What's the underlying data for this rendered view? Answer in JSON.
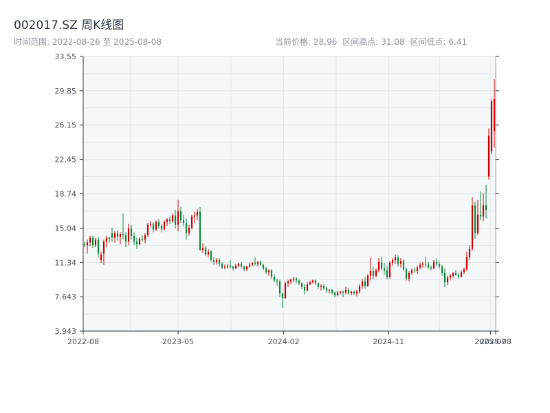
{
  "header": {
    "title": "002017.SZ 周K线图",
    "range_label": "时间范围:",
    "range_start": "2022-08-26",
    "range_sep": "至",
    "range_end": "2025-08-08",
    "price_label": "当前价格:",
    "price": "28.96",
    "high_label": "区间高点:",
    "high": "31.08",
    "low_label": "区间低点:",
    "low": "6.41"
  },
  "colors": {
    "up": "#cc0000",
    "down": "#0a8a3c",
    "plot_bg": "#f6f7f9",
    "grid": "#e2e5ea",
    "axis": "#2b3342"
  },
  "chart_data": {
    "type": "candlestick",
    "title": "002017.SZ 周K线图",
    "ylim": [
      3.943,
      33.55
    ],
    "yticks": [
      "3.943",
      "7.643",
      "11.34",
      "15.04",
      "18.74",
      "22.45",
      "26.15",
      "29.85",
      "33.55"
    ],
    "xlim": [
      "2022-08-26",
      "2025-08-08"
    ],
    "xticks": [
      {
        "date": "2022-08-26",
        "label": "2022-08"
      },
      {
        "date": "2023-05-01",
        "label": "2023-05"
      },
      {
        "date": "2024-02-01",
        "label": "2024-02"
      },
      {
        "date": "2024-11-01",
        "label": "2024-11"
      },
      {
        "date": "2025-07-25",
        "label": "2025-07"
      },
      {
        "date": "2025-08-08",
        "label": "2025-08"
      }
    ],
    "grid": true,
    "series": [
      {
        "ohlc": [
          [
            13.3,
            13.6,
            13.0,
            13.2
          ],
          [
            13.2,
            13.8,
            12.3,
            13.5
          ],
          [
            13.5,
            14.2,
            13.1,
            14.0
          ],
          [
            14.0,
            14.2,
            12.9,
            13.2
          ],
          [
            13.2,
            14.0,
            13.0,
            13.8
          ],
          [
            13.8,
            14.1,
            11.9,
            12.3
          ],
          [
            11.6,
            12.5,
            11.3,
            12.2
          ],
          [
            12.3,
            13.8,
            11.1,
            13.6
          ],
          [
            13.6,
            14.2,
            13.0,
            14.0
          ],
          [
            14.0,
            14.1,
            13.5,
            13.9
          ],
          [
            14.5,
            15.1,
            13.6,
            14.0
          ],
          [
            14.0,
            14.7,
            13.5,
            14.5
          ],
          [
            14.5,
            14.8,
            13.7,
            14.1
          ],
          [
            14.1,
            14.6,
            13.3,
            14.4
          ],
          [
            14.4,
            16.6,
            13.8,
            14.3
          ],
          [
            14.3,
            14.6,
            13.0,
            13.6
          ],
          [
            13.6,
            15.5,
            13.2,
            15.0
          ],
          [
            15.0,
            15.4,
            13.8,
            14.2
          ],
          [
            14.2,
            14.6,
            13.2,
            13.6
          ],
          [
            13.6,
            14.0,
            12.8,
            13.3
          ],
          [
            13.3,
            14.1,
            13.2,
            13.9
          ],
          [
            13.9,
            14.3,
            13.6,
            13.8
          ],
          [
            13.8,
            14.5,
            13.4,
            14.3
          ],
          [
            14.3,
            15.6,
            14.1,
            15.4
          ],
          [
            15.4,
            15.8,
            15.1,
            15.5
          ],
          [
            15.5,
            15.7,
            14.6,
            14.9
          ],
          [
            14.9,
            15.9,
            14.7,
            15.7
          ],
          [
            15.7,
            16.0,
            15.0,
            15.3
          ],
          [
            15.3,
            15.5,
            14.6,
            14.9
          ],
          [
            14.9,
            15.9,
            14.8,
            15.7
          ],
          [
            15.7,
            16.1,
            15.3,
            16.0
          ],
          [
            16.0,
            16.3,
            15.5,
            15.8
          ],
          [
            15.8,
            16.6,
            15.6,
            16.4
          ],
          [
            16.4,
            17.0,
            15.0,
            15.4
          ],
          [
            15.4,
            18.1,
            14.7,
            16.9
          ],
          [
            16.9,
            17.3,
            15.6,
            15.9
          ],
          [
            15.9,
            16.5,
            15.3,
            15.6
          ],
          [
            15.6,
            16.1,
            13.8,
            14.5
          ],
          [
            14.5,
            15.4,
            14.2,
            15.1
          ],
          [
            15.1,
            16.5,
            14.9,
            16.3
          ],
          [
            16.3,
            16.8,
            15.6,
            16.4
          ],
          [
            16.4,
            17.1,
            15.9,
            16.8
          ],
          [
            16.8,
            17.3,
            12.6,
            12.7
          ],
          [
            12.7,
            13.4,
            12.4,
            12.9
          ],
          [
            12.9,
            13.1,
            12.0,
            12.2
          ],
          [
            12.2,
            12.8,
            11.9,
            12.5
          ],
          [
            12.5,
            12.7,
            11.4,
            11.6
          ],
          [
            11.6,
            11.9,
            11.1,
            11.4
          ],
          [
            11.4,
            11.8,
            11.1,
            11.6
          ],
          [
            11.6,
            11.8,
            10.9,
            11.2
          ],
          [
            11.2,
            11.4,
            10.6,
            10.8
          ],
          [
            10.8,
            11.1,
            10.6,
            10.9
          ],
          [
            10.9,
            11.2,
            10.7,
            11.0
          ],
          [
            11.0,
            11.6,
            10.7,
            10.9
          ],
          [
            10.9,
            11.0,
            10.5,
            10.7
          ],
          [
            10.7,
            11.2,
            10.6,
            11.0
          ],
          [
            11.0,
            11.3,
            10.8,
            11.2
          ],
          [
            11.2,
            11.4,
            10.7,
            10.9
          ],
          [
            10.9,
            11.0,
            10.4,
            10.6
          ],
          [
            10.6,
            11.0,
            10.4,
            10.9
          ],
          [
            10.9,
            11.3,
            10.8,
            11.1
          ],
          [
            11.1,
            11.4,
            10.9,
            11.3
          ],
          [
            11.3,
            11.9,
            11.0,
            11.2
          ],
          [
            11.2,
            11.5,
            10.9,
            11.4
          ],
          [
            11.4,
            11.5,
            11.0,
            11.1
          ],
          [
            11.1,
            11.2,
            10.5,
            10.7
          ],
          [
            10.7,
            10.9,
            10.1,
            10.3
          ],
          [
            10.3,
            10.6,
            9.9,
            10.5
          ],
          [
            10.5,
            10.6,
            9.6,
            9.8
          ],
          [
            9.8,
            10.1,
            9.2,
            9.4
          ],
          [
            9.4,
            9.6,
            8.8,
            9.3
          ],
          [
            9.3,
            9.5,
            7.6,
            8.0
          ],
          [
            8.0,
            8.1,
            6.41,
            7.5
          ],
          [
            7.5,
            9.3,
            7.4,
            9.1
          ],
          [
            9.1,
            9.5,
            8.7,
            9.3
          ],
          [
            9.3,
            9.6,
            9.0,
            9.5
          ],
          [
            9.5,
            9.8,
            9.2,
            9.6
          ],
          [
            9.6,
            9.8,
            9.1,
            9.4
          ],
          [
            9.4,
            9.5,
            8.9,
            9.1
          ],
          [
            9.1,
            9.2,
            8.5,
            8.7
          ],
          [
            8.7,
            9.0,
            7.9,
            8.3
          ],
          [
            8.3,
            9.2,
            8.2,
            9.0
          ],
          [
            9.0,
            9.4,
            8.9,
            9.2
          ],
          [
            9.2,
            9.5,
            9.1,
            9.4
          ],
          [
            9.4,
            9.5,
            8.9,
            9.1
          ],
          [
            9.1,
            9.2,
            8.5,
            8.7
          ],
          [
            8.7,
            9.0,
            8.3,
            8.8
          ],
          [
            8.8,
            9.0,
            8.4,
            8.6
          ],
          [
            8.6,
            8.7,
            8.1,
            8.3
          ],
          [
            8.3,
            8.5,
            8.0,
            8.4
          ],
          [
            8.4,
            8.5,
            7.9,
            8.1
          ],
          [
            8.1,
            8.2,
            7.6,
            7.8
          ],
          [
            7.8,
            8.3,
            7.7,
            8.1
          ],
          [
            8.1,
            8.3,
            7.9,
            8.2
          ],
          [
            8.2,
            8.3,
            7.6,
            8.1
          ],
          [
            8.1,
            8.7,
            7.9,
            8.4
          ],
          [
            8.4,
            8.6,
            7.9,
            8.0
          ],
          [
            8.0,
            8.3,
            7.8,
            8.2
          ],
          [
            8.2,
            8.3,
            7.8,
            8.0
          ],
          [
            8.0,
            8.4,
            7.7,
            8.2
          ],
          [
            8.2,
            9.0,
            8.0,
            8.8
          ],
          [
            8.8,
            9.6,
            8.5,
            9.3
          ],
          [
            9.3,
            9.8,
            8.5,
            8.8
          ],
          [
            8.8,
            10.1,
            8.7,
            9.9
          ],
          [
            9.9,
            11.9,
            9.4,
            10.4
          ],
          [
            10.4,
            10.9,
            9.5,
            9.9
          ],
          [
            9.9,
            10.7,
            9.7,
            10.5
          ],
          [
            10.5,
            11.8,
            10.3,
            11.4
          ],
          [
            11.4,
            12.0,
            10.5,
            10.7
          ],
          [
            10.7,
            11.3,
            10.0,
            10.5
          ],
          [
            10.5,
            11.0,
            9.5,
            9.8
          ],
          [
            9.8,
            11.5,
            9.6,
            11.3
          ],
          [
            11.3,
            11.8,
            11.0,
            11.6
          ],
          [
            11.6,
            12.2,
            11.2,
            11.9
          ],
          [
            11.9,
            12.1,
            10.9,
            11.2
          ],
          [
            11.2,
            11.8,
            10.8,
            11.5
          ],
          [
            11.5,
            11.7,
            10.4,
            10.6
          ],
          [
            10.6,
            10.8,
            9.4,
            9.6
          ],
          [
            9.6,
            10.4,
            9.3,
            10.2
          ],
          [
            10.2,
            10.7,
            10.0,
            10.5
          ],
          [
            10.5,
            10.8,
            10.2,
            10.4
          ],
          [
            10.4,
            11.0,
            10.1,
            10.8
          ],
          [
            10.8,
            11.3,
            10.6,
            11.1
          ],
          [
            11.1,
            11.4,
            10.8,
            11.2
          ],
          [
            11.2,
            12.0,
            10.8,
            11.1
          ],
          [
            11.1,
            11.4,
            10.6,
            10.8
          ],
          [
            10.8,
            11.0,
            10.5,
            10.7
          ],
          [
            10.7,
            11.6,
            10.6,
            11.4
          ],
          [
            11.4,
            11.8,
            11.0,
            11.2
          ],
          [
            11.2,
            11.5,
            10.7,
            10.9
          ],
          [
            10.9,
            11.1,
            9.9,
            10.2
          ],
          [
            10.2,
            10.7,
            8.7,
            9.2
          ],
          [
            9.2,
            9.9,
            8.9,
            9.7
          ],
          [
            9.7,
            10.1,
            9.4,
            9.9
          ],
          [
            9.9,
            10.3,
            9.7,
            10.2
          ],
          [
            10.2,
            10.5,
            9.9,
            10.0
          ],
          [
            10.0,
            10.2,
            9.6,
            9.8
          ],
          [
            9.8,
            10.5,
            9.7,
            10.3
          ],
          [
            10.3,
            10.8,
            10.1,
            10.6
          ],
          [
            10.6,
            12.5,
            10.4,
            11.9
          ],
          [
            11.9,
            13.2,
            11.6,
            12.8
          ],
          [
            12.8,
            18.4,
            12.6,
            17.5
          ],
          [
            17.5,
            17.9,
            13.9,
            14.5
          ],
          [
            14.5,
            18.1,
            14.3,
            16.5
          ],
          [
            16.5,
            19.0,
            15.9,
            16.3
          ],
          [
            16.3,
            18.8,
            15.8,
            17.5
          ],
          [
            17.5,
            19.7,
            16.1,
            17.0
          ],
          [
            20.6,
            25.8,
            20.3,
            25.0
          ],
          [
            23.3,
            28.9,
            23.0,
            28.7
          ],
          [
            25.5,
            31.08,
            23.7,
            28.96
          ]
        ]
      }
    ]
  }
}
